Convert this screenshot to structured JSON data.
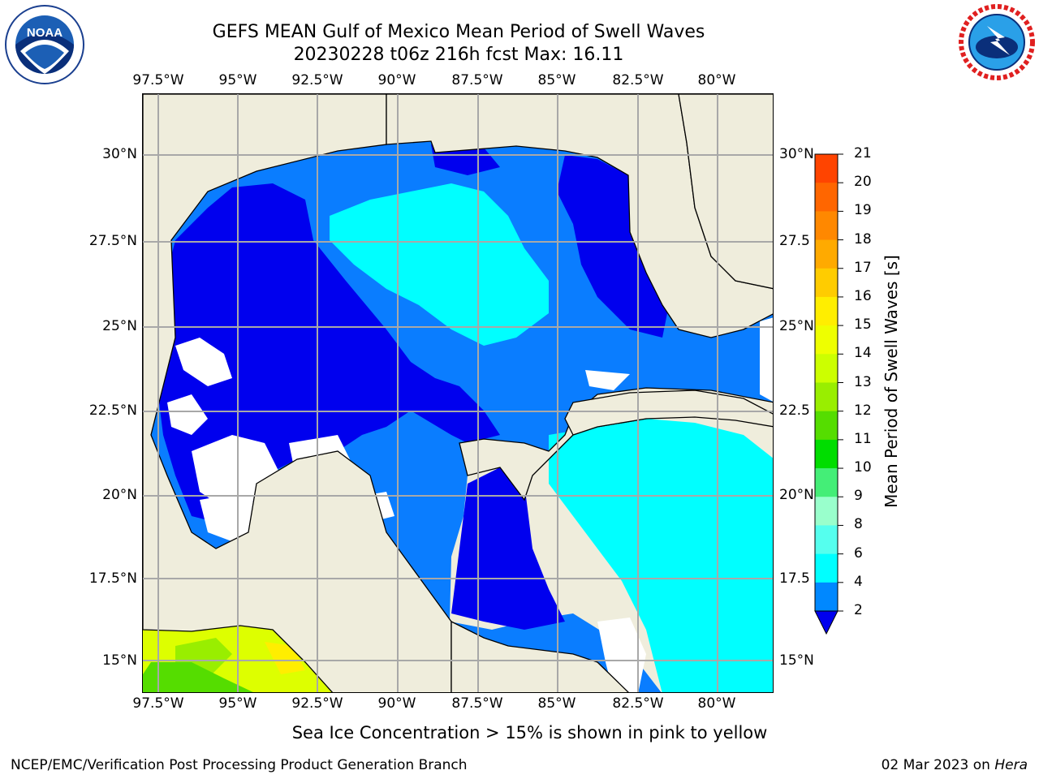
{
  "title_line1": "GEFS MEAN Gulf of Mexico Mean Period of Swell Waves",
  "title_line2": "20230228 t06z 216h fcst   Max: 16.11",
  "lon_labels": [
    "97.5°W",
    "95°W",
    "92.5°W",
    "90°W",
    "87.5°W",
    "85°W",
    "82.5°W",
    "80°W"
  ],
  "lat_labels": [
    "30°N",
    "27.5°N",
    "25°N",
    "22.5°N",
    "20°N",
    "17.5°N",
    "15°N"
  ],
  "lat_labels_right": [
    "30°N",
    "27.5",
    "25°N",
    "22.5",
    "20°N",
    "17.5",
    "15°N"
  ],
  "colorbar": {
    "label": "Mean Period of Swell Waves [s]",
    "ticks": [
      "21",
      "20",
      "19",
      "18",
      "17",
      "16",
      "15",
      "14",
      "13",
      "12",
      "11",
      "10",
      "9",
      "8",
      "6",
      "4",
      "2"
    ],
    "colors": [
      "#ff0000",
      "#ff2200",
      "#ff4400",
      "#ff6600",
      "#ff8800",
      "#ffaa00",
      "#ffcc00",
      "#ffee00",
      "#eeff00",
      "#ccff00",
      "#99ee00",
      "#55dd00",
      "#00dd00",
      "#44ee77",
      "#99ffcc",
      "#55ffee",
      "#00ffff",
      "#0088ff",
      "#0000ee"
    ]
  },
  "chart_data": {
    "type": "heatmap",
    "title": "GEFS MEAN Gulf of Mexico Mean Period of Swell Waves",
    "subtitle": "20230228 t06z 216h fcst   Max: 16.11",
    "max_value": 16.11,
    "units": "s",
    "x_ticks": [
      "97.5°W",
      "95°W",
      "92.5°W",
      "90°W",
      "87.5°W",
      "85°W",
      "82.5°W",
      "80°W"
    ],
    "y_ticks": [
      "30°N",
      "27.5°N",
      "25°N",
      "22.5°N",
      "20°N",
      "17.5°N",
      "15°N"
    ],
    "colorbar_levels": [
      2,
      4,
      6,
      8,
      9,
      10,
      11,
      12,
      13,
      14,
      15,
      16,
      17,
      18,
      19,
      20,
      21
    ],
    "grid": true
  },
  "footer_note": "Sea Ice Concentration > 15% is shown in pink to yellow",
  "credit": "NCEP/EMC/Verification Post Processing Product Generation Branch",
  "date_text": "02 Mar 2023 on ",
  "host": "Hera",
  "logos": {
    "left": "noaa-logo",
    "right": "nws-logo"
  }
}
